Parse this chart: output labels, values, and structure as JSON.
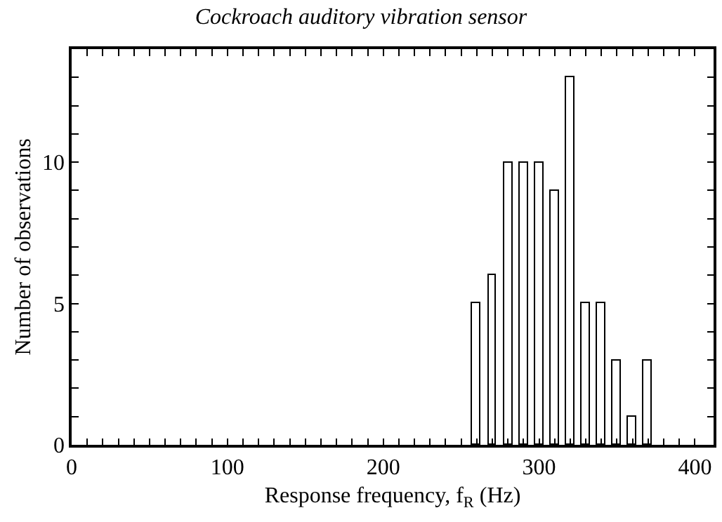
{
  "chart_data": {
    "type": "bar",
    "title": "Cockroach auditory vibration sensor",
    "xlabel": "Response frequency, f$_{R}$ (Hz)",
    "ylabel": "Number of observations",
    "x": [
      260,
      270,
      280,
      290,
      300,
      310,
      320,
      330,
      340,
      350,
      360,
      370
    ],
    "values": [
      5,
      6,
      10,
      10,
      10,
      9,
      13,
      5,
      5,
      3,
      1,
      3
    ],
    "color": "#ffffff",
    "xlim": [
      0,
      412
    ],
    "xticks": [
      0,
      {
        "value": 10,
        "label": null
      },
      {
        "value": 20,
        "label": null
      },
      {
        "value": 30,
        "label": null
      },
      {
        "value": 40,
        "label": null
      },
      {
        "value": 50,
        "label": null
      },
      {
        "value": 60,
        "label": null
      },
      {
        "value": 70,
        "label": null
      },
      {
        "value": 80,
        "label": null
      },
      {
        "value": 90,
        "label": null
      },
      100,
      {
        "value": 110,
        "label": null
      },
      {
        "value": 120,
        "label": null
      },
      {
        "value": 130,
        "label": null
      },
      {
        "value": 140,
        "label": null
      },
      {
        "value": 150,
        "label": null
      },
      {
        "value": 160,
        "label": null
      },
      {
        "value": 170,
        "label": null
      },
      {
        "value": 180,
        "label": null
      },
      {
        "value": 190,
        "label": null
      },
      200,
      {
        "value": 210,
        "label": null
      },
      {
        "value": 220,
        "label": null
      },
      {
        "value": 230,
        "label": null
      },
      {
        "value": 240,
        "label": null
      },
      {
        "value": 250,
        "label": null
      },
      {
        "value": 260,
        "label": null
      },
      {
        "value": 270,
        "label": null
      },
      {
        "value": 280,
        "label": null
      },
      {
        "value": 290,
        "label": null
      },
      300,
      {
        "value": 310,
        "label": null
      },
      {
        "value": 320,
        "label": null
      },
      {
        "value": 330,
        "label": null
      },
      {
        "value": 340,
        "label": null
      },
      {
        "value": 350,
        "label": null
      },
      {
        "value": 360,
        "label": null
      },
      {
        "value": 370,
        "label": null
      },
      {
        "value": 380,
        "label": null
      },
      {
        "value": 390,
        "label": null
      },
      400
    ],
    "ylim": [
      0,
      14
    ],
    "yticks": [
      0,
      {
        "value": 1,
        "label": null
      },
      {
        "value": 2,
        "label": null
      },
      {
        "value": 3,
        "label": null
      },
      {
        "value": 4,
        "label": null
      },
      5,
      {
        "value": 6,
        "label": null
      },
      {
        "value": 7,
        "label": null
      },
      {
        "value": 8,
        "label": null
      },
      {
        "value": 9,
        "label": null
      },
      10,
      {
        "value": 11,
        "label": null
      },
      {
        "value": 12,
        "label": null
      },
      {
        "value": 13,
        "label": null
      }
    ],
    "grid": false
  }
}
